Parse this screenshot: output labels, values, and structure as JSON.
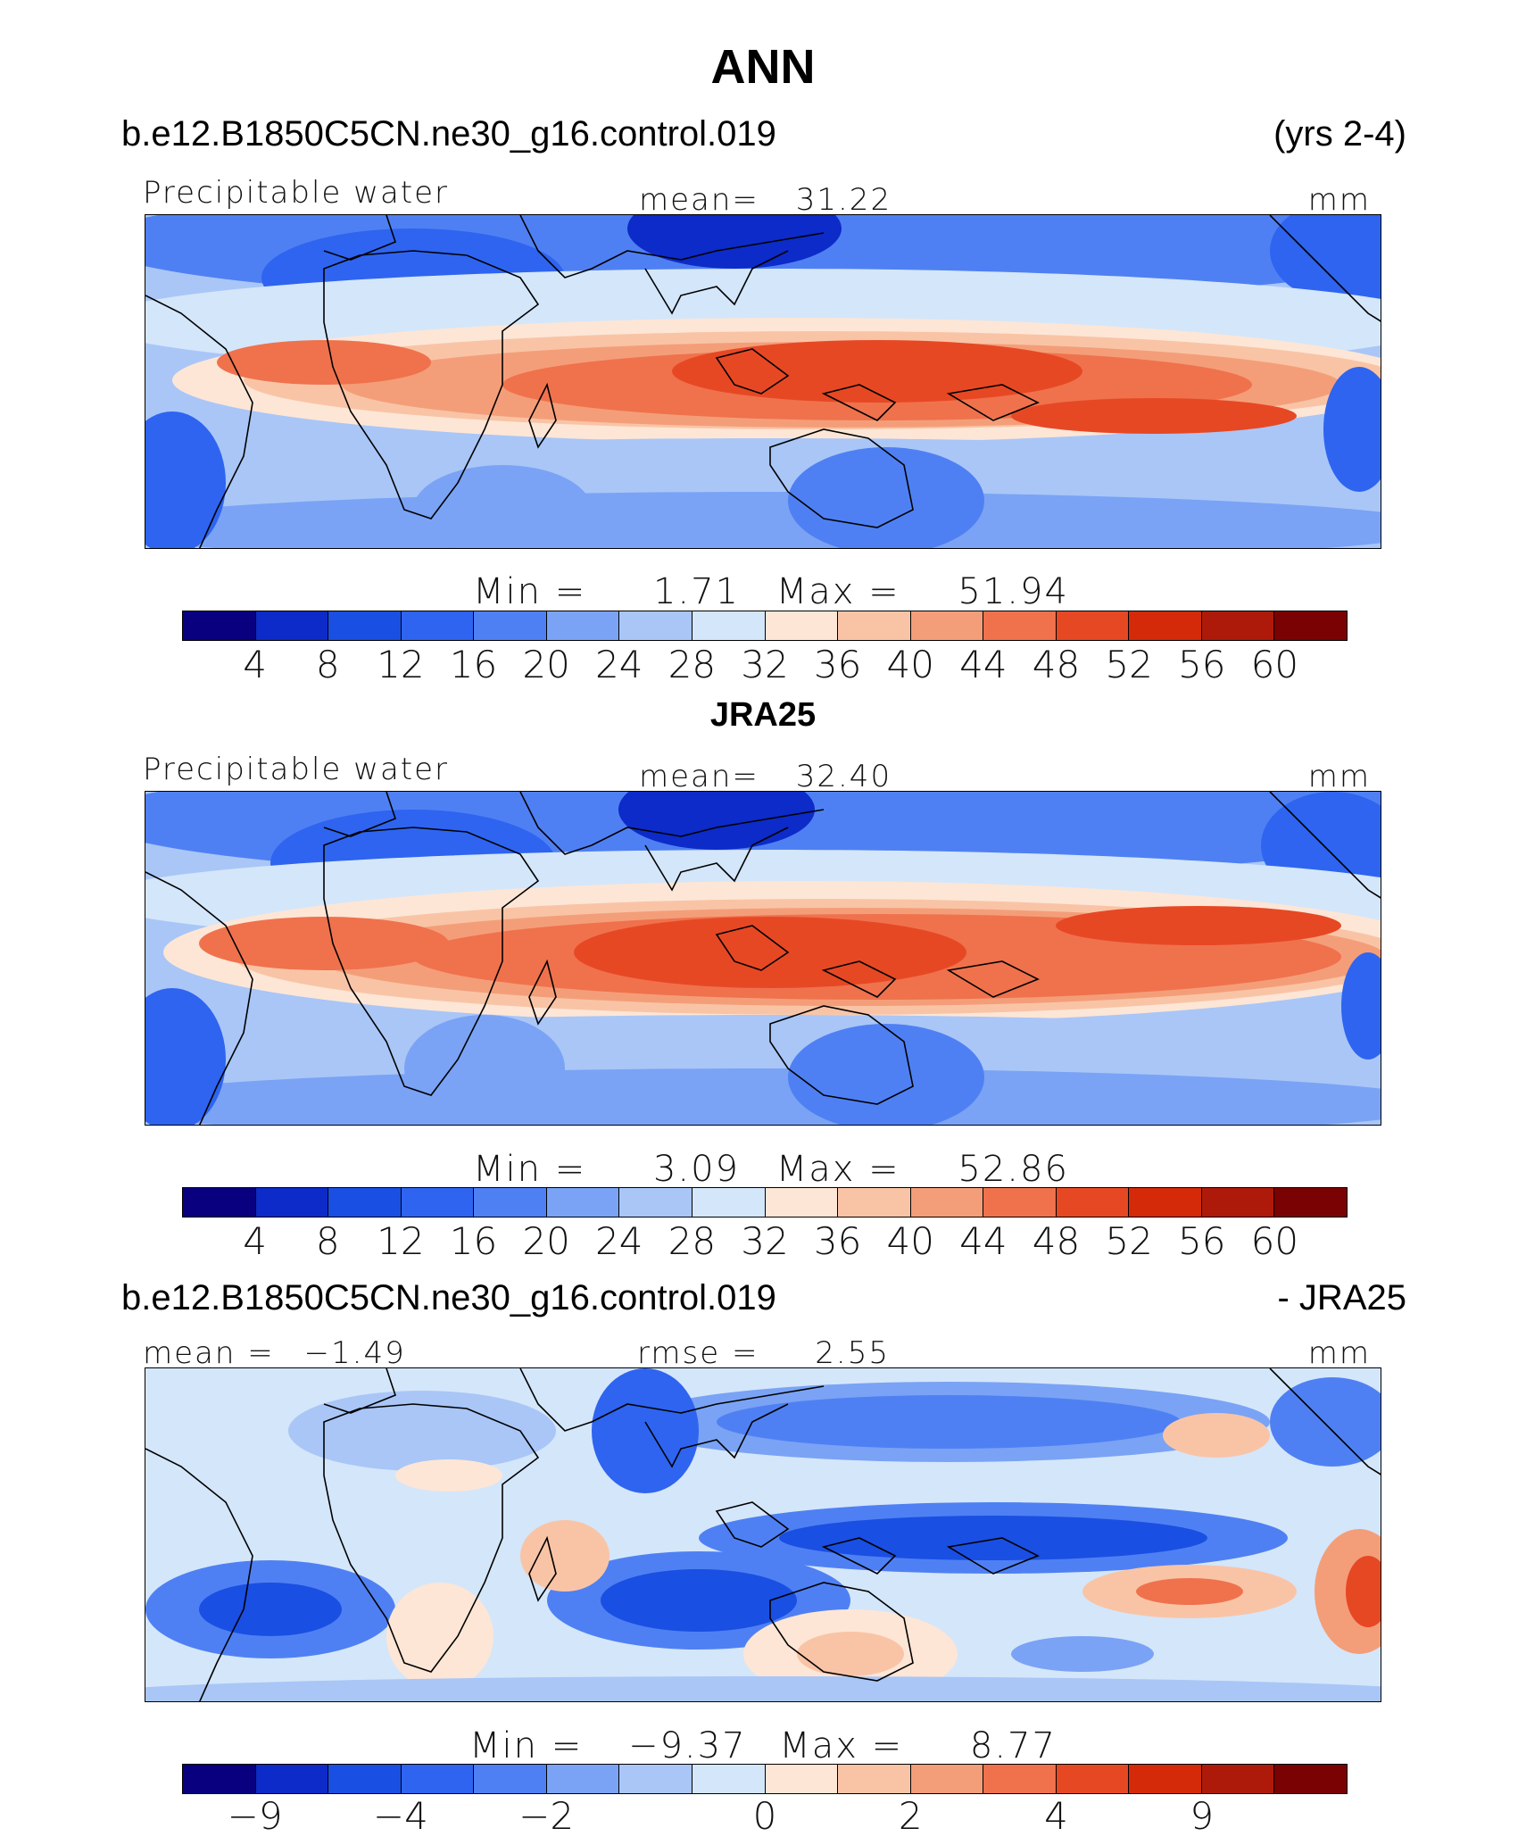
{
  "figure": {
    "title": "ANN",
    "case_name": "b.e12.B1850C5CN.ne30_g16.control.019",
    "years": "(yrs 2-4)"
  },
  "colors": {
    "abs_scale": [
      "#08007f",
      "#0c2bc8",
      "#1a4fe3",
      "#2e64f0",
      "#4f80f3",
      "#7aa3f5",
      "#a9c6f7",
      "#d4e6fa",
      "#fde6d6",
      "#f9c4a6",
      "#f49e79",
      "#ef724d",
      "#e74824",
      "#d42a0a",
      "#ae1a0a",
      "#7a0202"
    ],
    "diff_scale": [
      "#08007f",
      "#0c2bc8",
      "#1a4fe3",
      "#2e64f0",
      "#4f80f3",
      "#7aa3f5",
      "#a9c6f7",
      "#d4e6fa",
      "#fde6d6",
      "#f9c4a6",
      "#f49e79",
      "#ef724d",
      "#e74824",
      "#d42a0a",
      "#ae1a0a",
      "#7a0202"
    ]
  },
  "panels": [
    {
      "id": "model",
      "variable": "Precipitable water",
      "mean_label": "mean=",
      "mean_value": "31.22",
      "units": "mm",
      "min_label": "Min  =",
      "min_value": "1.71",
      "max_label": "Max  =",
      "max_value": "51.94"
    },
    {
      "id": "obs",
      "header": "JRA25",
      "variable": "Precipitable water",
      "mean_label": "mean=",
      "mean_value": "32.40",
      "units": "mm",
      "min_label": "Min  =",
      "min_value": "3.09",
      "max_label": "Max  =",
      "max_value": "52.86"
    },
    {
      "id": "diff",
      "header_left": "b.e12.B1850C5CN.ne30_g16.control.019",
      "header_right": "- JRA25",
      "mean_label": "mean  =",
      "mean_value": "−1.49",
      "rmse_label": "rmse  =",
      "rmse_value": "2.55",
      "units": "mm",
      "min_label": "Min  =",
      "min_value": "−9.37",
      "max_label": "Max  =",
      "max_value": "8.77"
    }
  ],
  "chart_data": [
    {
      "type": "heatmap",
      "title": "Precipitable water",
      "subtitle": "b.e12.B1850C5CN.ne30_g16.control.019 (yrs 2-4)",
      "units": "mm",
      "mean": 31.22,
      "min": 1.71,
      "max": 51.94,
      "colorbar_levels": [
        4,
        8,
        12,
        16,
        20,
        24,
        28,
        32,
        36,
        40,
        44,
        48,
        52,
        56,
        60
      ],
      "colorbar_labels": [
        "4",
        "8",
        "12",
        "16",
        "20",
        "24",
        "28",
        "32",
        "36",
        "40",
        "44",
        "48",
        "52",
        "56",
        "60"
      ]
    },
    {
      "type": "heatmap",
      "title": "Precipitable water",
      "subtitle": "JRA25",
      "units": "mm",
      "mean": 32.4,
      "min": 3.09,
      "max": 52.86,
      "colorbar_levels": [
        4,
        8,
        12,
        16,
        20,
        24,
        28,
        32,
        36,
        40,
        44,
        48,
        52,
        56,
        60
      ],
      "colorbar_labels": [
        "4",
        "8",
        "12",
        "16",
        "20",
        "24",
        "28",
        "32",
        "36",
        "40",
        "44",
        "48",
        "52",
        "56",
        "60"
      ]
    },
    {
      "type": "heatmap",
      "title": "b.e12.B1850C5CN.ne30_g16.control.019 - JRA25",
      "units": "mm",
      "mean": -1.49,
      "rmse": 2.55,
      "min": -9.37,
      "max": 8.77,
      "colorbar_labels": [
        "−9",
        "−4",
        "−2",
        "0",
        "2",
        "4",
        "9"
      ],
      "colorbar_label_values": [
        -9,
        -4,
        -2,
        0,
        2,
        4,
        9
      ]
    }
  ]
}
